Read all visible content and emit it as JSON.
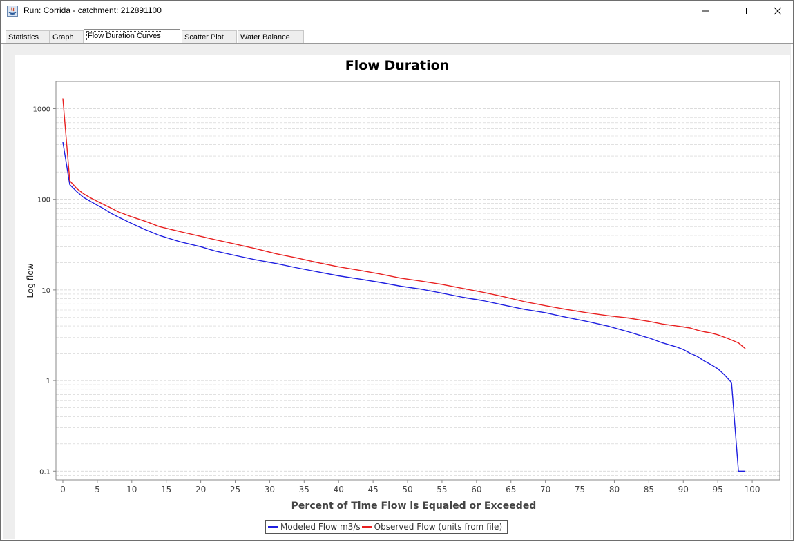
{
  "window": {
    "title": "Run: Corrida - catchment: 212891100",
    "minimize_glyph": "—",
    "maximize_glyph": "☐",
    "close_glyph": "✕"
  },
  "tabs": [
    {
      "label": "Statistics",
      "active": false
    },
    {
      "label": "Graph",
      "active": false
    },
    {
      "label": "Flow Duration Curves",
      "active": true
    },
    {
      "label": "Scatter Plot",
      "active": false
    },
    {
      "label": "Water Balance",
      "active": false
    }
  ],
  "legend": {
    "modeled_label": "Modeled Flow m3/s",
    "observed_label": "Observed Flow (units from file)"
  },
  "colors": {
    "modeled": "#1f1fe0",
    "observed": "#e82020",
    "grid": "#cfcfcf"
  },
  "chart_data": {
    "type": "line",
    "title": "Flow Duration",
    "xlabel": "Percent of Time Flow is Equaled or Exceeded",
    "ylabel": "Log flow",
    "xlim": [
      -1,
      104
    ],
    "ylim": [
      0.08,
      2000
    ],
    "y_scale": "log",
    "x_ticks": [
      0,
      5,
      10,
      15,
      20,
      25,
      30,
      35,
      40,
      45,
      50,
      55,
      60,
      65,
      70,
      75,
      80,
      85,
      90,
      95,
      100
    ],
    "y_ticks": [
      0.1,
      1,
      10,
      100,
      1000
    ],
    "y_tick_labels": [
      "0.1",
      "1",
      "10",
      "100",
      "1000"
    ],
    "grid": true,
    "legend_position": "bottom",
    "series": [
      {
        "name": "Modeled Flow m3/s",
        "color": "#1f1fe0",
        "x": [
          0,
          1,
          2,
          3,
          4,
          5,
          6,
          7,
          8,
          10,
          12,
          14,
          17,
          20,
          22,
          25,
          28,
          31,
          34,
          37,
          40,
          43,
          46,
          49,
          52,
          55,
          58,
          61,
          64,
          67,
          70,
          73,
          76,
          79,
          82,
          85,
          87,
          89,
          90,
          91,
          92,
          93,
          94,
          95,
          96,
          97,
          98,
          99
        ],
        "y": [
          430,
          145,
          122,
          105,
          95,
          86,
          78,
          70,
          64,
          54,
          46,
          40,
          34,
          30,
          27,
          24,
          21.5,
          19.5,
          17.5,
          15.8,
          14.3,
          13.2,
          12.1,
          11.0,
          10.2,
          9.2,
          8.3,
          7.6,
          6.8,
          6.1,
          5.6,
          5.0,
          4.5,
          4.0,
          3.45,
          2.95,
          2.6,
          2.35,
          2.2,
          2.0,
          1.85,
          1.65,
          1.5,
          1.35,
          1.15,
          0.95,
          0.1,
          0.1
        ]
      },
      {
        "name": "Observed Flow (units from file)",
        "color": "#e82020",
        "x": [
          0,
          1,
          2,
          3,
          4,
          5,
          6,
          7,
          8,
          10,
          12,
          14,
          17,
          20,
          22,
          25,
          28,
          31,
          34,
          37,
          40,
          43,
          46,
          49,
          52,
          55,
          58,
          61,
          64,
          67,
          70,
          73,
          76,
          79,
          82,
          85,
          87,
          89,
          90,
          91,
          92,
          93,
          94,
          95,
          96,
          97,
          98,
          99
        ],
        "y": [
          1300,
          160,
          132,
          115,
          104,
          95,
          87,
          80,
          73,
          64,
          57,
          50,
          44,
          39,
          36,
          32,
          28.5,
          25,
          22.5,
          20,
          18,
          16.5,
          15,
          13.5,
          12.5,
          11.5,
          10.4,
          9.4,
          8.4,
          7.4,
          6.7,
          6.1,
          5.6,
          5.2,
          4.9,
          4.5,
          4.2,
          4.0,
          3.9,
          3.8,
          3.6,
          3.45,
          3.35,
          3.2,
          3.0,
          2.8,
          2.6,
          2.25
        ]
      }
    ]
  }
}
